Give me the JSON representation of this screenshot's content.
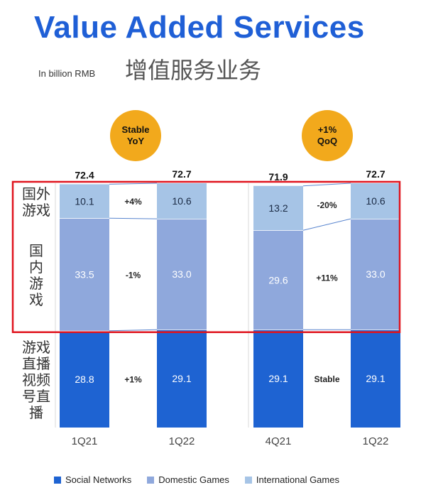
{
  "header": {
    "title": "Value Added Services",
    "subtitle_cn": "增值服务业务",
    "unit": "In billion RMB"
  },
  "badges": [
    {
      "line1": "Stable",
      "line2": "YoY"
    },
    {
      "line1": "+1%",
      "line2": "QoQ"
    }
  ],
  "row_labels_cn": {
    "international": "国外\n游戏",
    "domestic": "国\n内\n游\n戏",
    "social": "游戏\n直播\n视频\n号直\n播"
  },
  "colors": {
    "social": "#1e63d2",
    "domestic": "#8fa8dc",
    "international": "#a6c4e6",
    "highlight": "#e0141e",
    "connector": "#5a86cf"
  },
  "chart_data": {
    "type": "bar",
    "stacked": true,
    "categories": [
      "1Q21",
      "1Q22",
      "4Q21",
      "1Q22"
    ],
    "groups": [
      {
        "categories": [
          "1Q21",
          "1Q22"
        ],
        "comparison": "YoY"
      },
      {
        "categories": [
          "4Q21",
          "1Q22"
        ],
        "comparison": "QoQ"
      }
    ],
    "series": [
      {
        "name": "Social Networks",
        "key": "social",
        "values": [
          28.8,
          29.1,
          29.1,
          29.1
        ]
      },
      {
        "name": "Domestic Games",
        "key": "domestic",
        "values": [
          33.5,
          33.0,
          29.6,
          33.0
        ]
      },
      {
        "name": "International Games",
        "key": "international",
        "values": [
          10.1,
          10.6,
          13.2,
          10.6
        ]
      }
    ],
    "totals": [
      72.4,
      72.7,
      71.9,
      72.7
    ],
    "changes": [
      {
        "social": "+1%",
        "domestic": "-1%",
        "international": "+4%"
      },
      {
        "social": "Stable",
        "domestic": "+11%",
        "international": "-20%"
      }
    ],
    "legend": [
      "Social Networks",
      "Domestic Games",
      "International Games"
    ],
    "legend_position": "bottom",
    "highlight": "red box around Domestic Games and International Games"
  }
}
